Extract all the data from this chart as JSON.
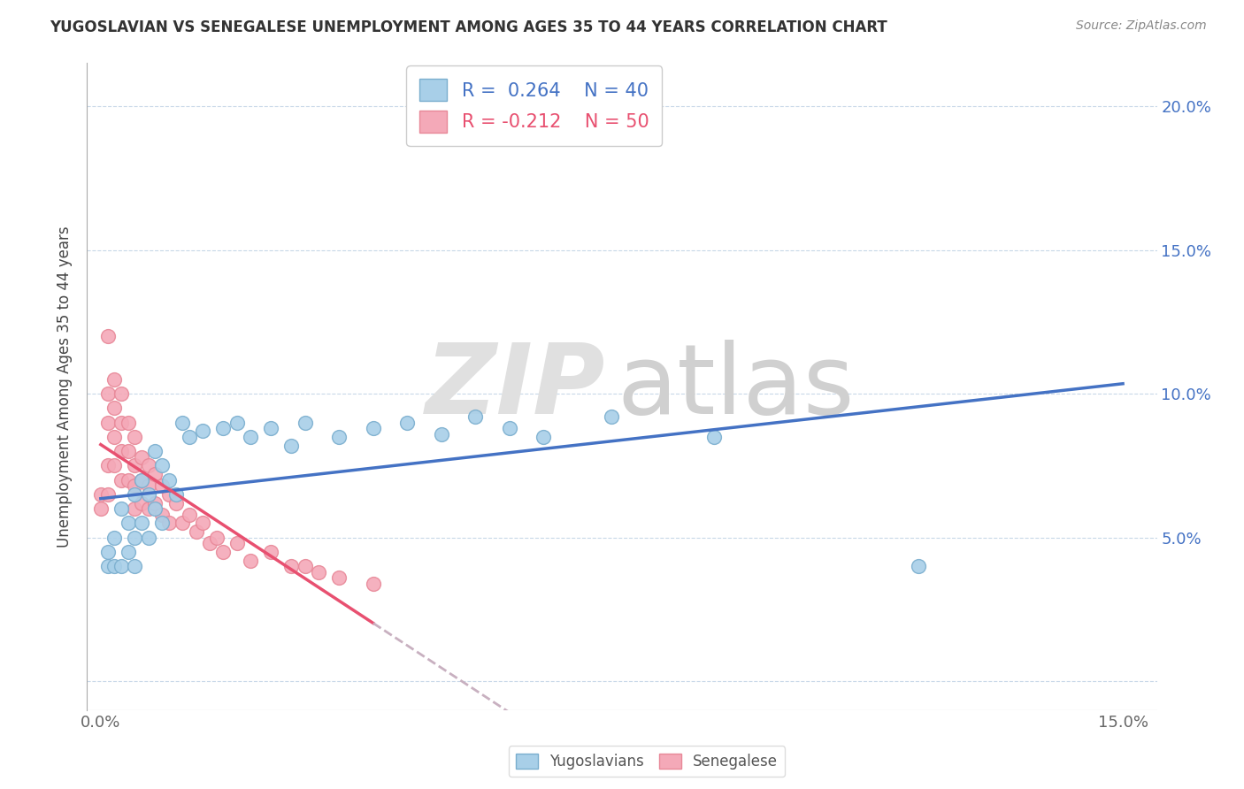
{
  "title": "YUGOSLAVIAN VS SENEGALESE UNEMPLOYMENT AMONG AGES 35 TO 44 YEARS CORRELATION CHART",
  "source": "Source: ZipAtlas.com",
  "ylabel": "Unemployment Among Ages 35 to 44 years",
  "xlim": [
    -0.002,
    0.155
  ],
  "ylim": [
    -0.01,
    0.215
  ],
  "xtick_positions": [
    0.0,
    0.05,
    0.1,
    0.15
  ],
  "xtick_labels": [
    "0.0%",
    "",
    "",
    "15.0%"
  ],
  "ytick_positions": [
    0.0,
    0.05,
    0.1,
    0.15,
    0.2
  ],
  "ytick_labels_right": [
    "",
    "5.0%",
    "10.0%",
    "15.0%",
    "20.0%"
  ],
  "legend_r1": "R =  0.264",
  "legend_n1": "N = 40",
  "legend_r2": "R = -0.212",
  "legend_n2": "N = 50",
  "blue_dot_color": "#a8cfe8",
  "blue_dot_edge": "#7aaece",
  "pink_dot_color": "#f4a9b8",
  "pink_dot_edge": "#e88898",
  "blue_line_color": "#4472c4",
  "pink_line_color": "#e85070",
  "pink_dash_color": "#c8b0c0",
  "watermark_zip_color": "#d8d8d8",
  "watermark_atlas_color": "#c8c8c8",
  "yug_x": [
    0.001,
    0.001,
    0.002,
    0.002,
    0.003,
    0.003,
    0.004,
    0.004,
    0.005,
    0.005,
    0.005,
    0.006,
    0.006,
    0.007,
    0.007,
    0.008,
    0.008,
    0.009,
    0.009,
    0.01,
    0.011,
    0.012,
    0.013,
    0.015,
    0.018,
    0.02,
    0.022,
    0.025,
    0.028,
    0.03,
    0.035,
    0.04,
    0.045,
    0.05,
    0.055,
    0.06,
    0.065,
    0.075,
    0.09,
    0.12
  ],
  "yug_y": [
    0.045,
    0.04,
    0.05,
    0.04,
    0.06,
    0.04,
    0.055,
    0.045,
    0.065,
    0.05,
    0.04,
    0.07,
    0.055,
    0.065,
    0.05,
    0.08,
    0.06,
    0.075,
    0.055,
    0.07,
    0.065,
    0.09,
    0.085,
    0.087,
    0.088,
    0.09,
    0.085,
    0.088,
    0.082,
    0.09,
    0.085,
    0.088,
    0.09,
    0.086,
    0.092,
    0.088,
    0.085,
    0.092,
    0.085,
    0.04
  ],
  "sen_x": [
    0.0,
    0.0,
    0.001,
    0.001,
    0.001,
    0.001,
    0.001,
    0.002,
    0.002,
    0.002,
    0.002,
    0.003,
    0.003,
    0.003,
    0.003,
    0.004,
    0.004,
    0.004,
    0.005,
    0.005,
    0.005,
    0.005,
    0.006,
    0.006,
    0.006,
    0.007,
    0.007,
    0.007,
    0.008,
    0.008,
    0.009,
    0.009,
    0.01,
    0.01,
    0.011,
    0.012,
    0.013,
    0.014,
    0.015,
    0.016,
    0.017,
    0.018,
    0.02,
    0.022,
    0.025,
    0.028,
    0.03,
    0.032,
    0.035,
    0.04
  ],
  "sen_y": [
    0.065,
    0.06,
    0.12,
    0.1,
    0.09,
    0.075,
    0.065,
    0.105,
    0.095,
    0.085,
    0.075,
    0.1,
    0.09,
    0.08,
    0.07,
    0.09,
    0.08,
    0.07,
    0.085,
    0.075,
    0.068,
    0.06,
    0.078,
    0.07,
    0.062,
    0.075,
    0.068,
    0.06,
    0.072,
    0.062,
    0.068,
    0.058,
    0.065,
    0.055,
    0.062,
    0.055,
    0.058,
    0.052,
    0.055,
    0.048,
    0.05,
    0.045,
    0.048,
    0.042,
    0.045,
    0.04,
    0.04,
    0.038,
    0.036,
    0.034
  ]
}
